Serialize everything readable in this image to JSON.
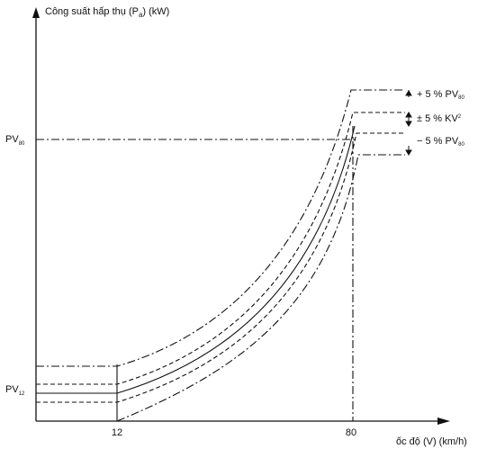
{
  "y_axis_label": {
    "before": "Công suất hấp thụ (P",
    "sub": "a",
    "after": ") (kW)"
  },
  "x_axis_label": "ốc độ (V) (km/h)",
  "y_labels": [
    {
      "base": "PV",
      "sub": "80"
    },
    {
      "base": "PV",
      "sub": "12"
    }
  ],
  "x_labels": [
    "12",
    "80"
  ],
  "annotations": [
    {
      "before": "+ 5 % PV",
      "sub": "80"
    },
    {
      "before": "± 5 % KV",
      "sup": "2"
    },
    {
      "before": "− 5 % PV",
      "sub": "80"
    }
  ]
}
